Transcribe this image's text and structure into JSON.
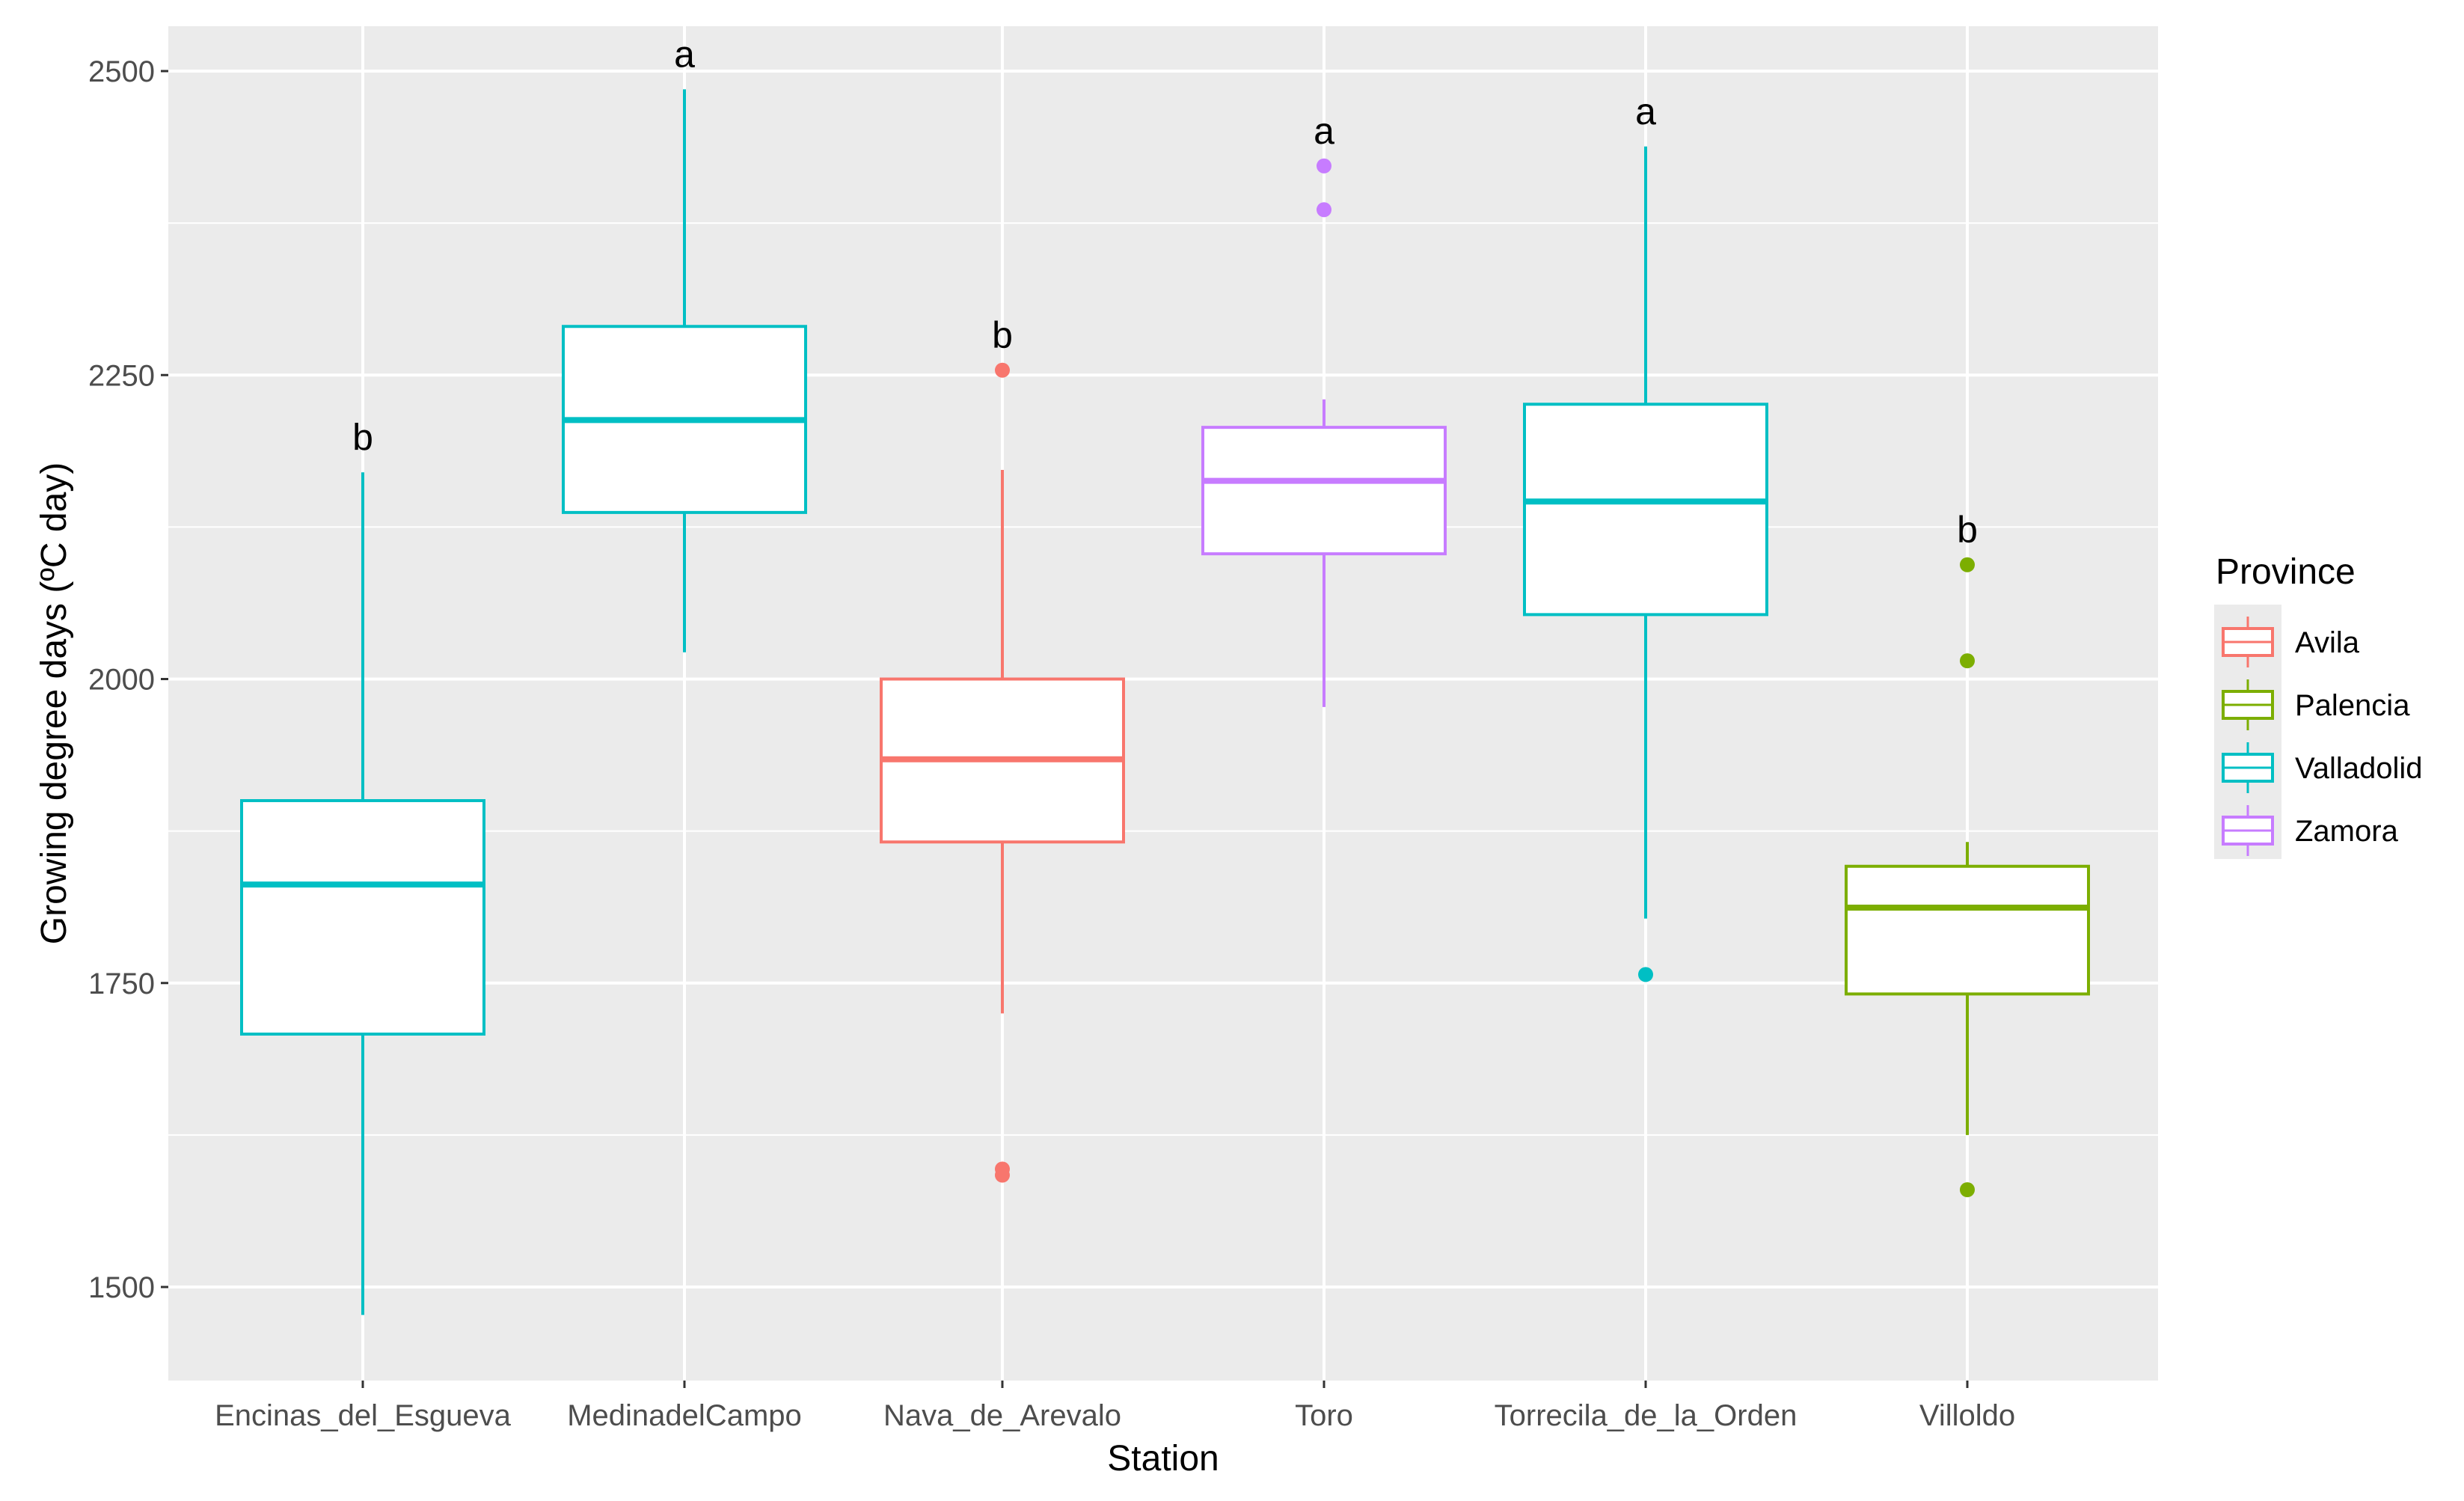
{
  "chart_data": {
    "type": "boxplot",
    "xlabel": "Station",
    "ylabel": "Growing degree days (ºC day)",
    "ylim": [
      1430,
      2555
    ],
    "yticks": [
      1500,
      1750,
      2000,
      2250,
      2500
    ],
    "ytick_labels": [
      "1500",
      "1750",
      "2000",
      "2250",
      "2500"
    ],
    "legend": {
      "title": "Province",
      "placement": "right",
      "entries": [
        {
          "name": "Avila",
          "color": "#F8766D"
        },
        {
          "name": "Palencia",
          "color": "#7CAE00"
        },
        {
          "name": "Valladolid",
          "color": "#00BFC4"
        },
        {
          "name": "Zamora",
          "color": "#C77CFF"
        }
      ]
    },
    "categories": [
      "Encinas_del_Esgueva",
      "MedinadelCampo",
      "Nava_de_Arevalo",
      "Toro",
      "Torrecila_de_la_Orden",
      "Villoldo"
    ],
    "boxes": [
      {
        "station": "Encinas_del_Esgueva",
        "province": "Valladolid",
        "whisker_low": 1477,
        "q1": 1708,
        "median": 1831,
        "q3": 1900,
        "whisker_high": 2170,
        "outliers": [],
        "letter": "b"
      },
      {
        "station": "MedinadelCampo",
        "province": "Valladolid",
        "whisker_low": 2022,
        "q1": 2137,
        "median": 2213,
        "q3": 2290,
        "whisker_high": 2485,
        "outliers": [],
        "letter": "a"
      },
      {
        "station": "Nava_de_Arevalo",
        "province": "Avila",
        "whisker_low": 1725,
        "q1": 1866,
        "median": 1934,
        "q3": 2000,
        "whisker_high": 2172,
        "outliers": [
          2254,
          1597,
          1592
        ],
        "letter": "b"
      },
      {
        "station": "Toro",
        "province": "Zamora",
        "whisker_low": 1977,
        "q1": 2103,
        "median": 2163,
        "q3": 2207,
        "whisker_high": 2230,
        "outliers": [
          2422,
          2386
        ],
        "letter": "a"
      },
      {
        "station": "Torrecila_de_la_Orden",
        "province": "Valladolid",
        "whisker_low": 1803,
        "q1": 2053,
        "median": 2146,
        "q3": 2226,
        "whisker_high": 2438,
        "outliers": [
          1757
        ],
        "letter": "a"
      },
      {
        "station": "Villoldo",
        "province": "Palencia",
        "whisker_low": 1625,
        "q1": 1741,
        "median": 1812,
        "q3": 1846,
        "whisker_high": 1866,
        "outliers": [
          2094,
          2015,
          1580
        ],
        "letter": "b"
      }
    ],
    "grid": true
  }
}
